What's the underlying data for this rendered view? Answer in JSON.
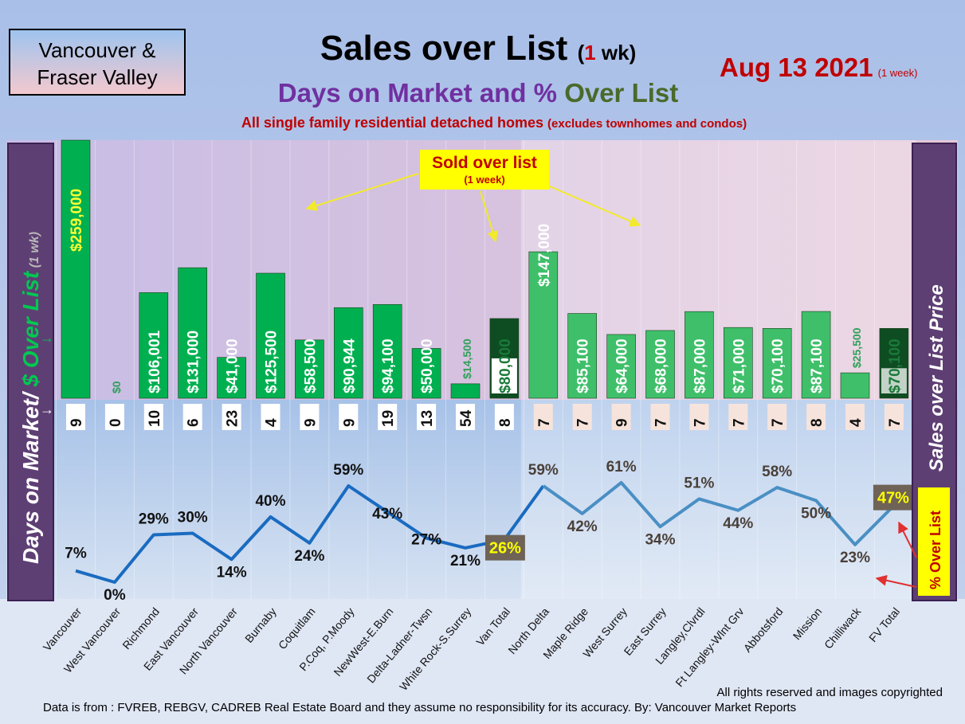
{
  "header": {
    "region_line1": "Vancouver &",
    "region_line2": "Fraser Valley",
    "title": "Sales over List",
    "title_paren_open": "(",
    "title_one": "1",
    "title_paren_rest": " wk)",
    "date": "Aug 13  2021",
    "date_note": "(1 week)",
    "subtitle_part1": "Days on Market and % ",
    "subtitle_part2": "Over List",
    "subtitle2_main": "All single family residential detached homes ",
    "subtitle2_small": "(excludes townhomes and condos)"
  },
  "left_axis": {
    "part1": "Days on Market/ ",
    "part2": "$ Over List",
    "part3": " (1 wk)"
  },
  "right_axis_label": "Sales over List Price",
  "pct_box_label": "% Over List",
  "annotation": {
    "title": "Sold over list",
    "sub": "(1 week)"
  },
  "footer": {
    "rights": "All rights reserved and  images copyrighted",
    "source": "Data is from : FVREB, REBGV, CADREB Real Estate Board and they assume no responsibility for its accuracy. By: Vancouver Market Reports"
  },
  "colors": {
    "bar_green": "#00b050",
    "bar_total_dark": "#0e4d22",
    "line_blue": "#1f6fbf",
    "fv_shade": "#d9cfc6"
  },
  "chart_data": {
    "type": "bar+line",
    "categories": [
      "Vancouver",
      "West Vancouver",
      "Richmond",
      "East Vancouver",
      "North Vancouver",
      "Burnaby",
      "Coquitlam",
      "P.Coq, P.Moody",
      "NewWest-E.Burn",
      "Delta-Ladner-Twsn",
      "White Rock-S.Surrey",
      "Van Total",
      "North Delta",
      "Maple Ridge",
      "West Surrey",
      "East Surrey",
      "Langley,Clvrdl",
      "Ft Langley-Wlnt Grv",
      "Abbotsford",
      "Mission",
      "Chilliwack",
      "FV Total"
    ],
    "series": [
      {
        "values": [
          259000,
          0,
          106001,
          131000,
          41000,
          125500,
          58500,
          90944,
          94100,
          50000,
          14500,
          80000,
          147000,
          85100,
          64000,
          68000,
          87000,
          71000,
          70100,
          87100,
          25500,
          70100
        ]
      },
      {
        "values": [
          9,
          0,
          10,
          6,
          23,
          4,
          9,
          9,
          19,
          13,
          54,
          8,
          7,
          7,
          9,
          7,
          7,
          7,
          7,
          8,
          4,
          7
        ]
      },
      {
        "values": [
          7,
          0,
          29,
          30,
          14,
          40,
          24,
          59,
          43,
          27,
          21,
          26,
          59,
          42,
          61,
          34,
          51,
          44,
          58,
          50,
          23,
          47
        ]
      }
    ],
    "bar_labels": [
      "$259,000",
      "$0",
      "$106,001",
      "$131,000",
      "$41,000",
      "$125,500",
      "$58,500",
      "$90,944",
      "$94,100",
      "$50,000",
      "$14,500",
      "$80,000",
      "$147,000",
      "$85,100",
      "$64,000",
      "$68,000",
      "$87,000",
      "$71,000",
      "$70,100",
      "$87,100",
      "$25,500",
      "$70,100"
    ],
    "dom_labels": [
      "9",
      "0",
      "10",
      "6",
      "23",
      "4",
      "9",
      "9",
      "19",
      "13",
      "54",
      "8",
      "7",
      "7",
      "9",
      "7",
      "7",
      "7",
      "7",
      "8",
      "4",
      "7"
    ],
    "pct_labels": [
      "7%",
      "0%",
      "29%",
      "30%",
      "14%",
      "40%",
      "24%",
      "59%",
      "43%",
      "27%",
      "21%",
      "26%",
      "59%",
      "42%",
      "61%",
      "34%",
      "51%",
      "44%",
      "58%",
      "50%",
      "23%",
      "47%"
    ]
  }
}
